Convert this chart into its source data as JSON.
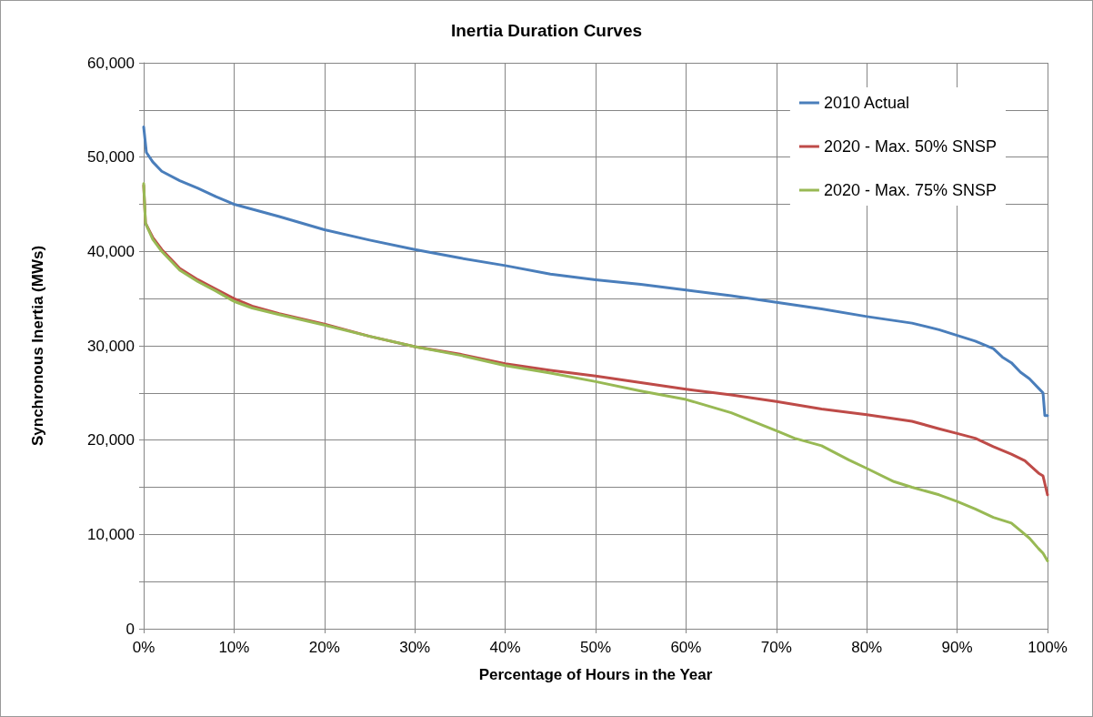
{
  "chart_data": {
    "type": "line",
    "title": "Inertia Duration Curves",
    "xlabel": "Percentage of Hours in the Year",
    "ylabel": "Synchronous Inertia (MWs)",
    "xlim": [
      0,
      100
    ],
    "xticks": [
      {
        "value": 0,
        "label": "0%"
      },
      {
        "value": 10,
        "label": "10%"
      },
      {
        "value": 20,
        "label": "20%"
      },
      {
        "value": 30,
        "label": "30%"
      },
      {
        "value": 40,
        "label": "40%"
      },
      {
        "value": 50,
        "label": "50%"
      },
      {
        "value": 60,
        "label": "60%"
      },
      {
        "value": 70,
        "label": "70%"
      },
      {
        "value": 80,
        "label": "80%"
      },
      {
        "value": 90,
        "label": "90%"
      },
      {
        "value": 100,
        "label": "100%"
      }
    ],
    "ylim": [
      0,
      60000
    ],
    "yticks": [
      {
        "value": 0,
        "label": "0"
      },
      {
        "value": 5000,
        "label": null
      },
      {
        "value": 10000,
        "label": "10,000"
      },
      {
        "value": 15000,
        "label": null
      },
      {
        "value": 20000,
        "label": "20,000"
      },
      {
        "value": 25000,
        "label": null
      },
      {
        "value": 30000,
        "label": "30,000"
      },
      {
        "value": 35000,
        "label": null
      },
      {
        "value": 40000,
        "label": "40,000"
      },
      {
        "value": 45000,
        "label": null
      },
      {
        "value": 50000,
        "label": "50,000"
      },
      {
        "value": 55000,
        "label": null
      },
      {
        "value": 60000,
        "label": "60,000"
      }
    ],
    "grid": true,
    "legend": "top right",
    "marker": "none",
    "line_style": "solid",
    "series": [
      {
        "name": "2010 Actual",
        "color": "#4a7ebb",
        "x": [
          0,
          0.3,
          1,
          2,
          4,
          6,
          8,
          10,
          15,
          20,
          25,
          30,
          35,
          40,
          45,
          50,
          55,
          60,
          65,
          70,
          75,
          80,
          85,
          88,
          90,
          92,
          94,
          95,
          96,
          97,
          98,
          99,
          99.5,
          99.7,
          100
        ],
        "values": [
          53200,
          50500,
          49500,
          48500,
          47500,
          46700,
          45800,
          45000,
          43700,
          42300,
          41200,
          40200,
          39300,
          38500,
          37600,
          37000,
          36500,
          35900,
          35300,
          34600,
          33900,
          33100,
          32400,
          31700,
          31100,
          30500,
          29700,
          28800,
          28200,
          27200,
          26500,
          25500,
          25000,
          22600,
          22600
        ]
      },
      {
        "name": "2020 - Max. 50% SNSP",
        "color": "#be4b48",
        "x": [
          0,
          0.2,
          1,
          2,
          4,
          6,
          8,
          10,
          12,
          15,
          20,
          25,
          30,
          35,
          40,
          45,
          50,
          55,
          60,
          65,
          70,
          75,
          80,
          85,
          88,
          90,
          92,
          94,
          96,
          97.5,
          99,
          99.5,
          100
        ],
        "values": [
          47000,
          43000,
          41500,
          40200,
          38200,
          37000,
          36000,
          35000,
          34200,
          33400,
          32300,
          31000,
          29900,
          29100,
          28100,
          27400,
          26800,
          26100,
          25400,
          24800,
          24100,
          23300,
          22700,
          22000,
          21200,
          20700,
          20200,
          19300,
          18500,
          17800,
          16500,
          16200,
          14200
        ]
      },
      {
        "name": "2020 - Max. 75% SNSP",
        "color": "#98b954",
        "x": [
          0,
          0.2,
          1,
          2,
          4,
          6,
          8,
          10,
          12,
          15,
          20,
          25,
          30,
          35,
          40,
          45,
          50,
          55,
          60,
          65,
          70,
          72,
          75,
          78,
          80,
          83,
          85,
          88,
          90,
          92,
          94,
          96,
          97,
          98,
          99,
          99.5,
          100
        ],
        "values": [
          47200,
          43000,
          41300,
          40000,
          38000,
          36800,
          35800,
          34700,
          34000,
          33300,
          32200,
          31000,
          29900,
          29000,
          27900,
          27100,
          26200,
          25200,
          24300,
          22900,
          21000,
          20200,
          19400,
          17900,
          17000,
          15600,
          15000,
          14200,
          13500,
          12700,
          11800,
          11200,
          10400,
          9600,
          8500,
          8000,
          7200
        ]
      }
    ]
  }
}
